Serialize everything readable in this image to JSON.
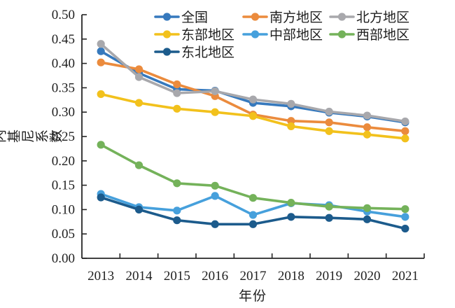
{
  "chart_data": {
    "type": "line",
    "title": "",
    "xlabel": "年份",
    "ylabel": "组内基尼系数",
    "categories": [
      "2013",
      "2014",
      "2015",
      "2016",
      "2017",
      "2018",
      "2019",
      "2020",
      "2021"
    ],
    "ylim": [
      0.0,
      0.5
    ],
    "ytick_step": 0.05,
    "y_tick_labels": [
      "0.00",
      "0.05",
      "0.10",
      "0.15",
      "0.20",
      "0.25",
      "0.30",
      "0.35",
      "0.40",
      "0.45",
      "0.50"
    ],
    "grid": "off",
    "legend_position": "top-inside",
    "legend_rows": [
      [
        "全国",
        "南方地区",
        "北方地区"
      ],
      [
        "东部地区",
        "中部地区",
        "西部地区"
      ],
      [
        "东北地区"
      ]
    ],
    "marker": "circle",
    "series": [
      {
        "name": "全国",
        "color": "#3679BD",
        "values": [
          0.425,
          0.38,
          0.347,
          0.344,
          0.319,
          0.312,
          0.299,
          0.291,
          0.279
        ]
      },
      {
        "name": "南方地区",
        "color": "#EB8B3D",
        "values": [
          0.402,
          0.388,
          0.357,
          0.333,
          0.295,
          0.282,
          0.279,
          0.269,
          0.261
        ]
      },
      {
        "name": "北方地区",
        "color": "#A8A8AC",
        "values": [
          0.44,
          0.372,
          0.339,
          0.343,
          0.326,
          0.317,
          0.301,
          0.293,
          0.281
        ]
      },
      {
        "name": "东部地区",
        "color": "#F2C11C",
        "values": [
          0.337,
          0.319,
          0.307,
          0.3,
          0.292,
          0.271,
          0.261,
          0.254,
          0.246
        ]
      },
      {
        "name": "中部地区",
        "color": "#46A0DC",
        "values": [
          0.132,
          0.105,
          0.098,
          0.128,
          0.089,
          0.113,
          0.109,
          0.096,
          0.085
        ]
      },
      {
        "name": "西部地区",
        "color": "#74B25A",
        "values": [
          0.233,
          0.191,
          0.154,
          0.149,
          0.124,
          0.114,
          0.106,
          0.103,
          0.101
        ]
      },
      {
        "name": "东北地区",
        "color": "#1C5B8C",
        "values": [
          0.125,
          0.1,
          0.078,
          0.07,
          0.07,
          0.085,
          0.083,
          0.08,
          0.061
        ]
      }
    ]
  }
}
